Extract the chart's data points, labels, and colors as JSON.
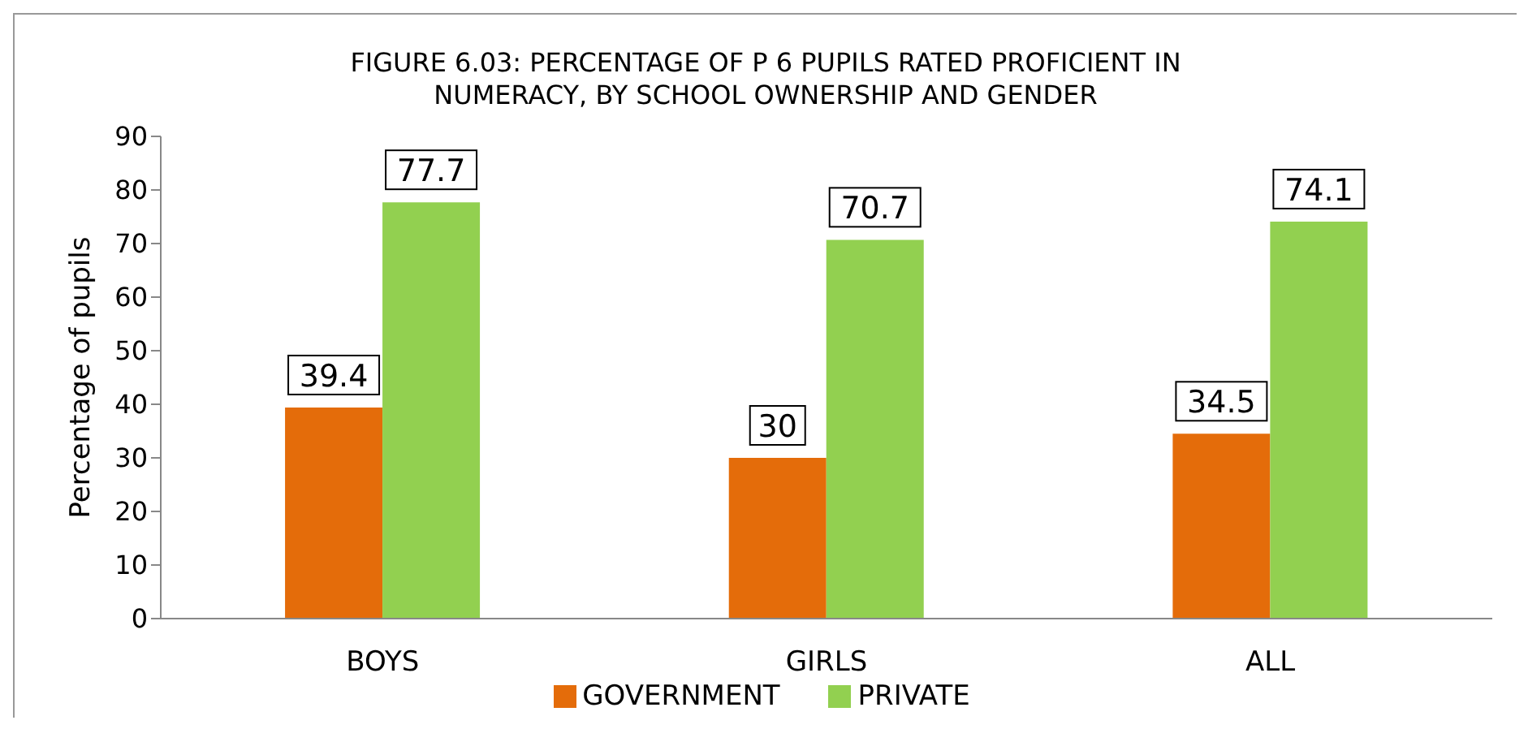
{
  "chart_data": {
    "type": "bar",
    "title": "FIGURE 6.03: PERCENTAGE OF P 6 PUPILS RATED PROFICIENT IN\nNUMERACY, BY SCHOOL OWNERSHIP AND GENDER",
    "ylabel": "Percentage of pupils",
    "categories": [
      "BOYS",
      "GIRLS",
      "ALL"
    ],
    "series": [
      {
        "name": "GOVERNMENT",
        "color": "#e46c0a",
        "values": [
          39.4,
          30,
          34.5
        ]
      },
      {
        "name": "PRIVATE",
        "color": "#92d050",
        "values": [
          77.7,
          70.7,
          74.1
        ]
      }
    ],
    "ylim": [
      0,
      90
    ],
    "yticks": [
      0,
      10,
      20,
      30,
      40,
      50,
      60,
      70,
      80,
      90
    ],
    "data_labels": true,
    "legend": "bottom",
    "grid": false
  }
}
